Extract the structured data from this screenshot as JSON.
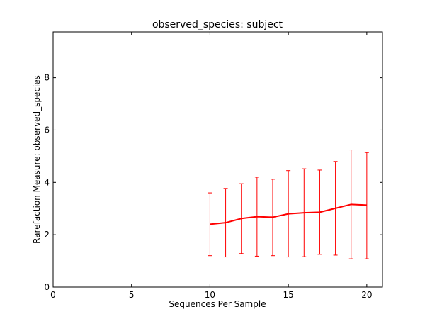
{
  "chart_data": {
    "type": "line",
    "title": "observed_species: subject",
    "xlabel": "Sequences Per Sample",
    "ylabel": "Rarefaction Measure: observed_species",
    "xlim": [
      0,
      21
    ],
    "ylim": [
      0,
      9.75
    ],
    "xticks": [
      "0",
      "5",
      "10",
      "15",
      "20"
    ],
    "yticks": [
      "0",
      "2",
      "4",
      "6",
      "8"
    ],
    "grid": false,
    "legend": "none",
    "series": [
      {
        "color": "#ff0000",
        "x": [
          10,
          11,
          12,
          13,
          14,
          15,
          16,
          17,
          18,
          19,
          20
        ],
        "y": [
          2.4,
          2.46,
          2.62,
          2.69,
          2.67,
          2.8,
          2.84,
          2.86,
          3.01,
          3.16,
          3.13
        ],
        "error_low": [
          1.2,
          1.15,
          1.28,
          1.18,
          1.2,
          1.15,
          1.16,
          1.25,
          1.22,
          1.08,
          1.08
        ],
        "error_high": [
          3.6,
          3.77,
          3.95,
          4.2,
          4.12,
          4.45,
          4.52,
          4.47,
          4.8,
          5.24,
          5.14
        ]
      }
    ]
  }
}
